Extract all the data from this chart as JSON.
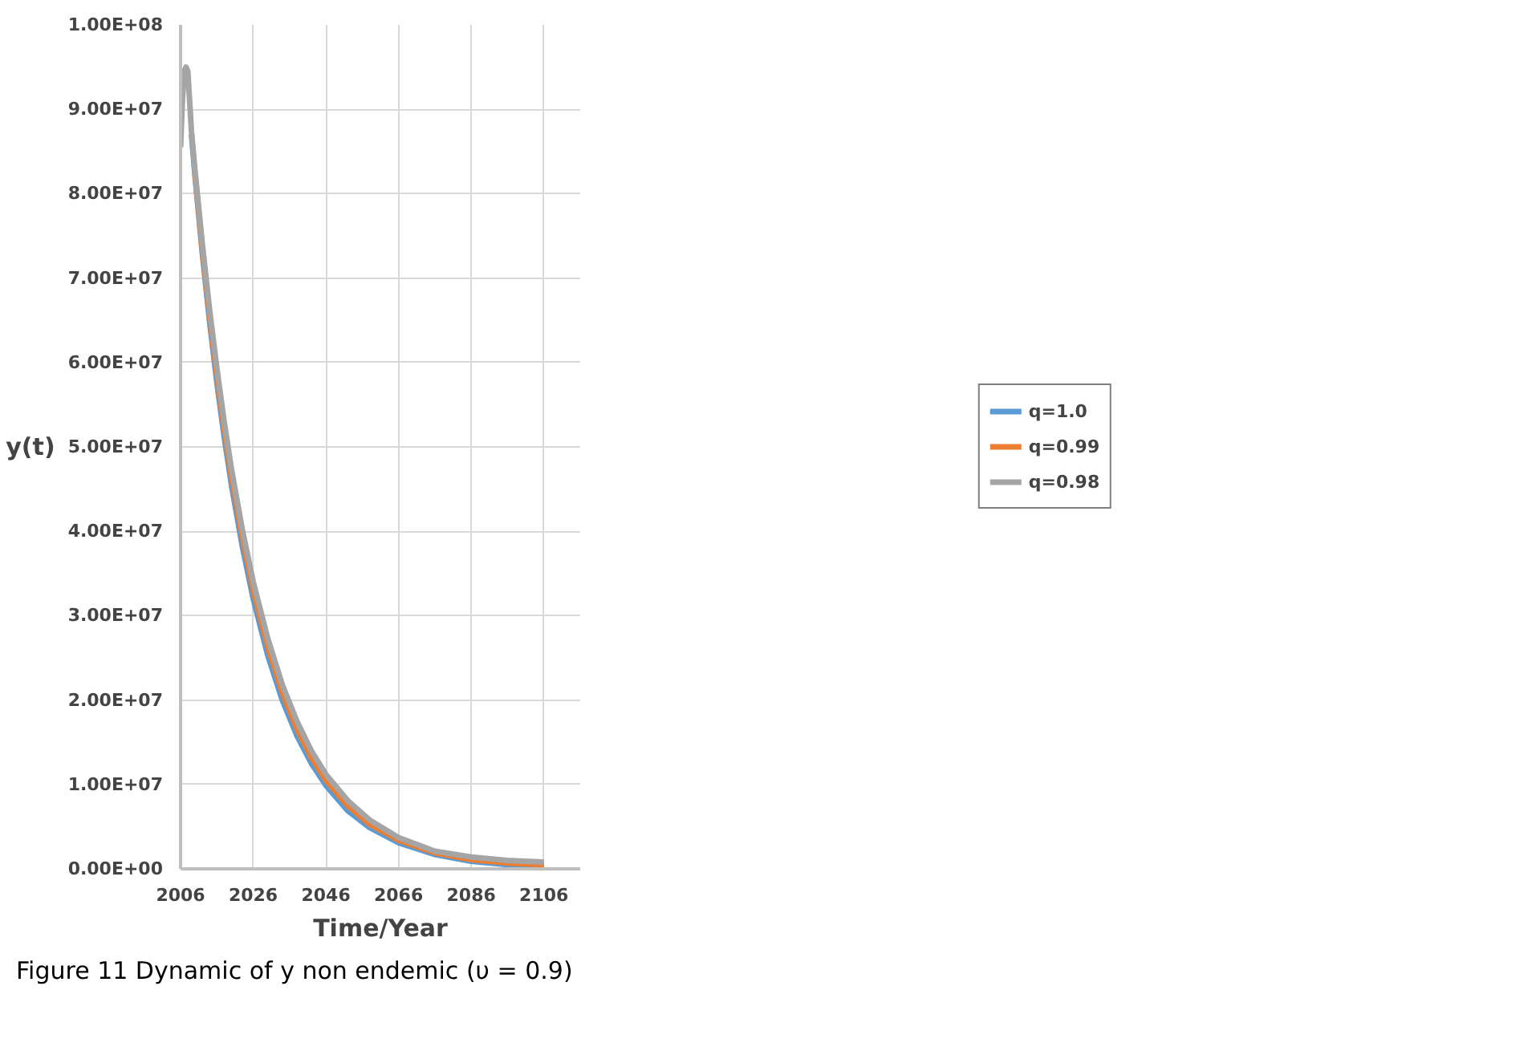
{
  "chart_data": {
    "type": "line",
    "xlabel": "Time/Year",
    "ylabel": "y(t)",
    "annotations": [
      "Figure 11  Dynamic of y non endemic (υ = 0.9)"
    ],
    "x": [
      2006,
      2006.5,
      2007,
      2007.5,
      2008,
      2009,
      2010,
      2012,
      2014,
      2016,
      2018,
      2020,
      2023,
      2026,
      2030,
      2034,
      2038,
      2042,
      2046,
      2052,
      2058,
      2066,
      2076,
      2086,
      2096,
      2106
    ],
    "series": [
      {
        "name": "q=1.0",
        "color": "#5b9bd5",
        "values": [
          null,
          null,
          null,
          null,
          null,
          87000000.0,
          82000000.0,
          72900000.0,
          64800000.0,
          57600000.0,
          51200000.0,
          45500000.0,
          38200000.0,
          32000000.0,
          25300000.0,
          20000000.0,
          15800000.0,
          12500000.0,
          9900000.0,
          6900000.0,
          4900000.0,
          3100000.0,
          1700000.0,
          900000.0,
          500000.0,
          300000.0
        ]
      },
      {
        "name": "q=0.99",
        "color": "#ed7d31",
        "values": [
          null,
          null,
          null,
          null,
          null,
          null,
          82300000.0,
          73400000.0,
          65500000.0,
          58400000.0,
          52100000.0,
          46400000.0,
          39200000.0,
          33000000.0,
          26300000.0,
          20900000.0,
          16600000.0,
          13200000.0,
          10500000.0,
          7500000.0,
          5300000.0,
          3400000.0,
          1900000.0,
          1100000.0,
          700000.0,
          500000.0
        ]
      },
      {
        "name": "q=0.98",
        "color": "#a5a5a5",
        "values": [
          85500000.0,
          91000000.0,
          94500000.0,
          95000000.0,
          94500000.0,
          87400000.0,
          82600000.0,
          74000000.0,
          66200000.0,
          59300000.0,
          53000000.0,
          47400000.0,
          40200000.0,
          34000000.0,
          27300000.0,
          21800000.0,
          17500000.0,
          14000000.0,
          11200000.0,
          8100000.0,
          5800000.0,
          3700000.0,
          2100000.0,
          1400000.0,
          1000000.0,
          800000.0
        ]
      }
    ],
    "xlim": [
      2006,
      2116
    ],
    "xticks": [
      2006,
      2026,
      2046,
      2066,
      2086,
      2106
    ],
    "ylim": [
      0,
      100000000.0
    ],
    "yticks": [
      {
        "value": 0,
        "label": "0.00E+00"
      },
      {
        "value": 10000000.0,
        "label": "1.00E+07"
      },
      {
        "value": 20000000.0,
        "label": "2.00E+07"
      },
      {
        "value": 30000000.0,
        "label": "3.00E+07"
      },
      {
        "value": 40000000.0,
        "label": "4.00E+07"
      },
      {
        "value": 50000000.0,
        "label": "5.00E+07"
      },
      {
        "value": 60000000.0,
        "label": "6.00E+07"
      },
      {
        "value": 70000000.0,
        "label": "7.00E+07"
      },
      {
        "value": 80000000.0,
        "label": "8.00E+07"
      },
      {
        "value": 90000000.0,
        "label": "9.00E+07"
      },
      {
        "value": 100000000.0,
        "label": "1.00E+08"
      }
    ],
    "grid": true,
    "legend": "right",
    "marker": "none",
    "line_style": "solid"
  }
}
